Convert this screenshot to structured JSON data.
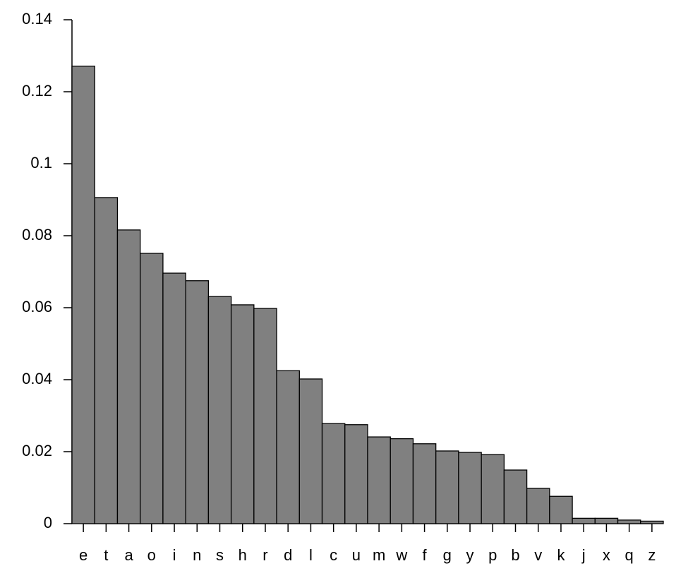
{
  "chart_data": {
    "type": "bar",
    "categories": [
      "e",
      "t",
      "a",
      "o",
      "i",
      "n",
      "s",
      "h",
      "r",
      "d",
      "l",
      "c",
      "u",
      "m",
      "w",
      "f",
      "g",
      "y",
      "p",
      "b",
      "v",
      "k",
      "j",
      "x",
      "q",
      "z"
    ],
    "values": [
      0.1271,
      0.0906,
      0.0816,
      0.0751,
      0.0696,
      0.0675,
      0.0631,
      0.0608,
      0.0598,
      0.0425,
      0.0402,
      0.0278,
      0.0275,
      0.0241,
      0.0236,
      0.0222,
      0.0202,
      0.0198,
      0.0192,
      0.0149,
      0.0098,
      0.0076,
      0.0015,
      0.0015,
      0.001,
      0.0007
    ],
    "color": "#808080",
    "ylim": [
      0,
      0.14
    ],
    "yticks": [
      0,
      0.02,
      0.04,
      0.06,
      0.08,
      0.1,
      0.12,
      0.14
    ]
  }
}
